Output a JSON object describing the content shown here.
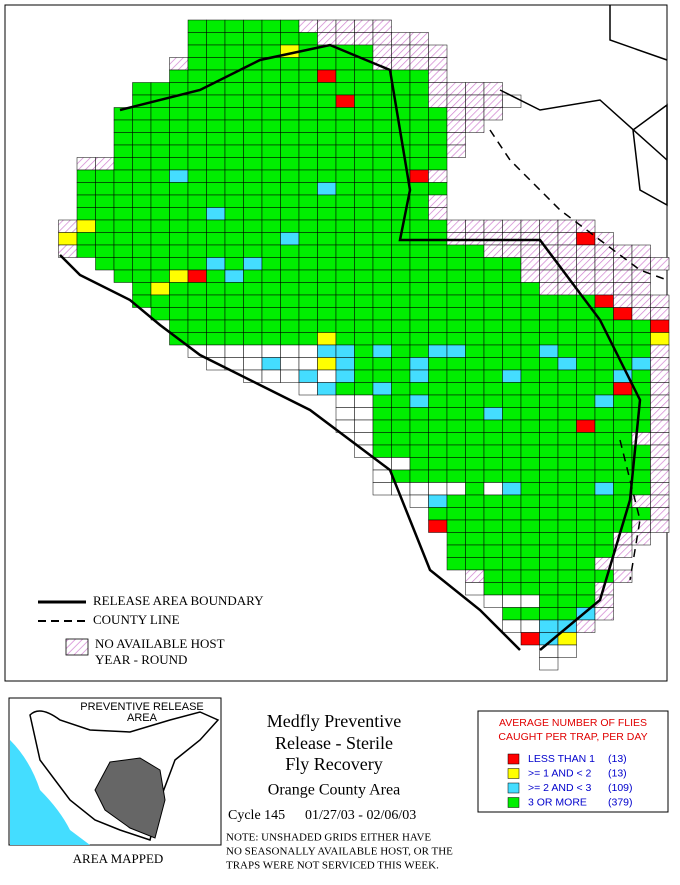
{
  "map": {
    "cell_colors": {
      "G": "#00ee00",
      "C": "#44ddff",
      "Y": "#ffff00",
      "R": "#ff0000",
      "W": "#ffffff"
    },
    "grid_rows": [
      {
        "start": 9,
        "cells": "GGGGGGHHHHH"
      },
      {
        "start": 9,
        "cells": "GGGGGGGHHHHHH"
      },
      {
        "start": 9,
        "cells": "GGGGGYGGGGHHHH"
      },
      {
        "start": 8,
        "cells": "HGGGGGGGGGGHHHH"
      },
      {
        "start": 8,
        "cells": "GGGGGGGGRGGGGGH"
      },
      {
        "start": 6,
        "cells": "GGGGGGGGGGGGGGGGHHHH"
      },
      {
        "start": 6,
        "cells": "GGGGGGGGGGGRGGGGHHHHW"
      },
      {
        "start": 5,
        "cells": "GGGGGGGGGGGGGGGGGGHHH"
      },
      {
        "start": 5,
        "cells": "GGGGGGGGGGGGGGGGGGHH"
      },
      {
        "start": 5,
        "cells": "GGGGGGGGGGGGGGGGGGH"
      },
      {
        "start": 5,
        "cells": "GGGGGGGGGGGGGGGGGGH"
      },
      {
        "start": 3,
        "cells": "HHGGGGGGGGGGGGGGGGGG"
      },
      {
        "start": 3,
        "cells": "GGGGGCGGGGGGGGGGGGRH"
      },
      {
        "start": 3,
        "cells": "GGGGGGGGGGGGGCGGGGGG"
      },
      {
        "start": 3,
        "cells": "GGGGGGGGGGGGGGGGGGGH"
      },
      {
        "start": 3,
        "cells": "GGGGGGGCGGGGGGGGGGGH"
      },
      {
        "start": 2,
        "cells": "HYGGGGGGGGGGGGGGGGGGGHHHHHHHH"
      },
      {
        "start": 2,
        "cells": "YGGGGGGGGGGGCGGGGGGGGHHHHHHHRH"
      },
      {
        "start": 2,
        "cells": "HGGGGGGGGGGGGGGGGGGGGGGHHHHHHHHH"
      },
      {
        "start": 4,
        "cells": "GGGGGGCGCGGGGGGGGGGGGGGHHHHHHHH"
      },
      {
        "start": 5,
        "cells": "GGGYRGCGGGGGGGGGGGGGGGHHHHHHH"
      },
      {
        "start": 6,
        "cells": "GYGGGGGGGGGGGGGGGGGGGGHHHHHH"
      },
      {
        "start": 6,
        "cells": "GGGGGGGGGGGGGGGGGGGGGGGGGRHHH"
      },
      {
        "start": 7,
        "cells": "GGGGGGGGGGGGGGGGGGGGGGGGGRHH"
      },
      {
        "start": 8,
        "cells": "GGGGGGGGGGGGGGGGGGGGGGGGGGR"
      },
      {
        "start": 8,
        "cells": "GGGGGGGGYGGGGGGGGGGGGGGGGGY"
      },
      {
        "start": 9,
        "cells": "WWWWWWWCCGCGGCCGGGGCGGGGGH"
      },
      {
        "start": 10,
        "cells": "WWWCWWYCGGGCGGGGGGGCGGGCH"
      },
      {
        "start": 12,
        "cells": "WWWCWCGGGCGGGGCGGGGGCGH"
      },
      {
        "start": 15,
        "cells": "WCGGCGGGGGGGGGGGGRGH"
      },
      {
        "start": 17,
        "cells": "WWGGCGGGGGGGGGCGGH"
      },
      {
        "start": 17,
        "cells": "WWGGGGGGCGGGGGGGGH"
      },
      {
        "start": 17,
        "cells": "WWGGGGGGGGGGGRGGGH"
      },
      {
        "start": 18,
        "cells": "WGGGGGGGGGGGGGGHH"
      },
      {
        "start": 18,
        "cells": "WGGGGGGGGGGGGGGGH"
      },
      {
        "start": 19,
        "cells": "WWGGGGGGGGGGGGGH"
      },
      {
        "start": 19,
        "cells": "WGGGGGGGGGGGGGGH"
      },
      {
        "start": 19,
        "cells": "WWWWWGWCGGGGCGGH"
      },
      {
        "start": 21,
        "cells": "WCGGGGGGGGGGHH"
      },
      {
        "start": 22,
        "cells": "GGGGGGGGGGGGH"
      },
      {
        "start": 22,
        "cells": "RGGGGGGGGGGHH"
      },
      {
        "start": 23,
        "cells": "GGGGGGGGGHH"
      },
      {
        "start": 23,
        "cells": "GGGGGGGGGH"
      },
      {
        "start": 23,
        "cells": "GGGGGGGGH"
      },
      {
        "start": 24,
        "cells": "HGGGGGGGH"
      },
      {
        "start": 24,
        "cells": "WGGGGGGH"
      },
      {
        "start": 25,
        "cells": "WWWGGGH"
      },
      {
        "start": 26,
        "cells": "GGGGCH"
      },
      {
        "start": 26,
        "cells": "WWCCH"
      },
      {
        "start": 27,
        "cells": "RCY"
      },
      {
        "start": 28,
        "cells": "WW"
      },
      {
        "start": 28,
        "cells": "W"
      }
    ],
    "legend": {
      "release_boundary": "RELEASE AREA BOUNDARY",
      "county_line": "COUNTY LINE",
      "no_host": [
        "NO AVAILABLE HOST",
        "YEAR - ROUND"
      ]
    }
  },
  "inset": {
    "title": [
      "PREVENTIVE RELEASE",
      "AREA"
    ],
    "caption": "AREA MAPPED"
  },
  "title": {
    "lines": [
      "Medfly Preventive",
      "Release - Sterile",
      "Fly Recovery"
    ],
    "area": "Orange County Area",
    "cycle": "Cycle 145",
    "dates": "01/27/03 - 02/06/03"
  },
  "note": [
    "NOTE: UNSHADED GRIDS EITHER HAVE",
    "NO SEASONALLY AVAILABLE HOST, OR THE",
    "TRAPS WERE NOT SERVICED THIS WEEK."
  ],
  "fly_legend": {
    "title": [
      "AVERAGE NUMBER OF FLIES",
      "CAUGHT PER TRAP, PER DAY"
    ],
    "items": [
      {
        "label": "LESS THAN 1",
        "count": "(13)",
        "color": "#ff0000"
      },
      {
        "label": ">= 1 AND < 2",
        "count": "(13)",
        "color": "#ffff00"
      },
      {
        "label": ">= 2 AND < 3",
        "count": "(109)",
        "color": "#44ddff"
      },
      {
        "label": "3 OR MORE",
        "count": "(379)",
        "color": "#00ee00"
      }
    ]
  }
}
